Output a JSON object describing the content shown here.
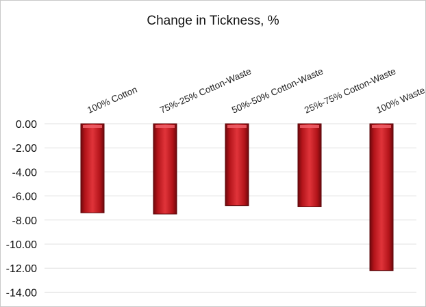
{
  "chart_data": {
    "type": "bar",
    "title": "Change in Tickness, %",
    "categories": [
      "100% Cotton",
      "75%-25% Cotton-Waste",
      "50%-50% Cotton-Waste",
      "25%-75% Cotton-Waste",
      "100% Waste"
    ],
    "values": [
      -7.4,
      -7.5,
      -6.8,
      -6.9,
      -12.2
    ],
    "ylim": [
      -14,
      0
    ],
    "yticks": [
      0,
      -2,
      -4,
      -6,
      -8,
      -10,
      -12,
      -14
    ],
    "ytick_labels": [
      "0.00",
      "-2.00",
      "-4.00",
      "-6.00",
      "-8.00",
      "-10.00",
      "-12.00",
      "-14.00"
    ],
    "grid": true,
    "colors": {
      "bar": "#c0161c",
      "bar_dark": "#7a0a0e",
      "bar_light": "#e8444a",
      "grid": "#e0e0e0"
    }
  }
}
